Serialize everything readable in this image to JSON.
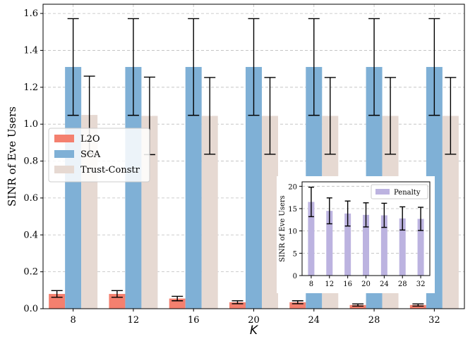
{
  "chart_data": [
    {
      "type": "bar",
      "title": "",
      "xlabel": "K",
      "ylabel": "SINR of Eve Users",
      "categories": [
        "8",
        "12",
        "16",
        "20",
        "24",
        "28",
        "32"
      ],
      "ylim": [
        0,
        1.65
      ],
      "yticks": [
        "0.0",
        "0.2",
        "0.4",
        "0.6",
        "0.8",
        "1.0",
        "1.2",
        "1.4",
        "1.6"
      ],
      "grid": true,
      "legend_position": "center-left",
      "series": [
        {
          "name": "L2O",
          "color": "#f4806f",
          "values": [
            0.08,
            0.08,
            0.055,
            0.035,
            0.035,
            0.02,
            0.02
          ],
          "err": [
            0.018,
            0.018,
            0.012,
            0.008,
            0.008,
            0.006,
            0.006
          ]
        },
        {
          "name": "SCA",
          "color": "#7fb0d6",
          "values": [
            1.31,
            1.31,
            1.31,
            1.31,
            1.31,
            1.31,
            1.31
          ],
          "err": [
            0.262,
            0.262,
            0.262,
            0.262,
            0.262,
            0.262,
            0.262
          ]
        },
        {
          "name": "Trust-Constr",
          "color": "#e6d9d2",
          "values": [
            1.05,
            1.045,
            1.045,
            1.045,
            1.045,
            1.045,
            1.045
          ],
          "err": [
            0.21,
            0.21,
            0.208,
            0.208,
            0.208,
            0.208,
            0.208
          ]
        }
      ]
    },
    {
      "type": "bar",
      "title": "",
      "xlabel": "",
      "ylabel": "SINR of Eve Users",
      "categories": [
        "8",
        "12",
        "16",
        "20",
        "24",
        "28",
        "32"
      ],
      "ylim": [
        0,
        21
      ],
      "yticks": [
        "0",
        "5",
        "10",
        "15",
        "20"
      ],
      "grid": true,
      "legend_position": "top-right",
      "series": [
        {
          "name": "Penalty",
          "color": "#bcb3e0",
          "values": [
            16.5,
            14.5,
            13.9,
            13.6,
            13.5,
            12.8,
            12.7
          ],
          "err": [
            3.3,
            2.9,
            2.8,
            2.7,
            2.7,
            2.6,
            2.6
          ]
        }
      ]
    }
  ]
}
